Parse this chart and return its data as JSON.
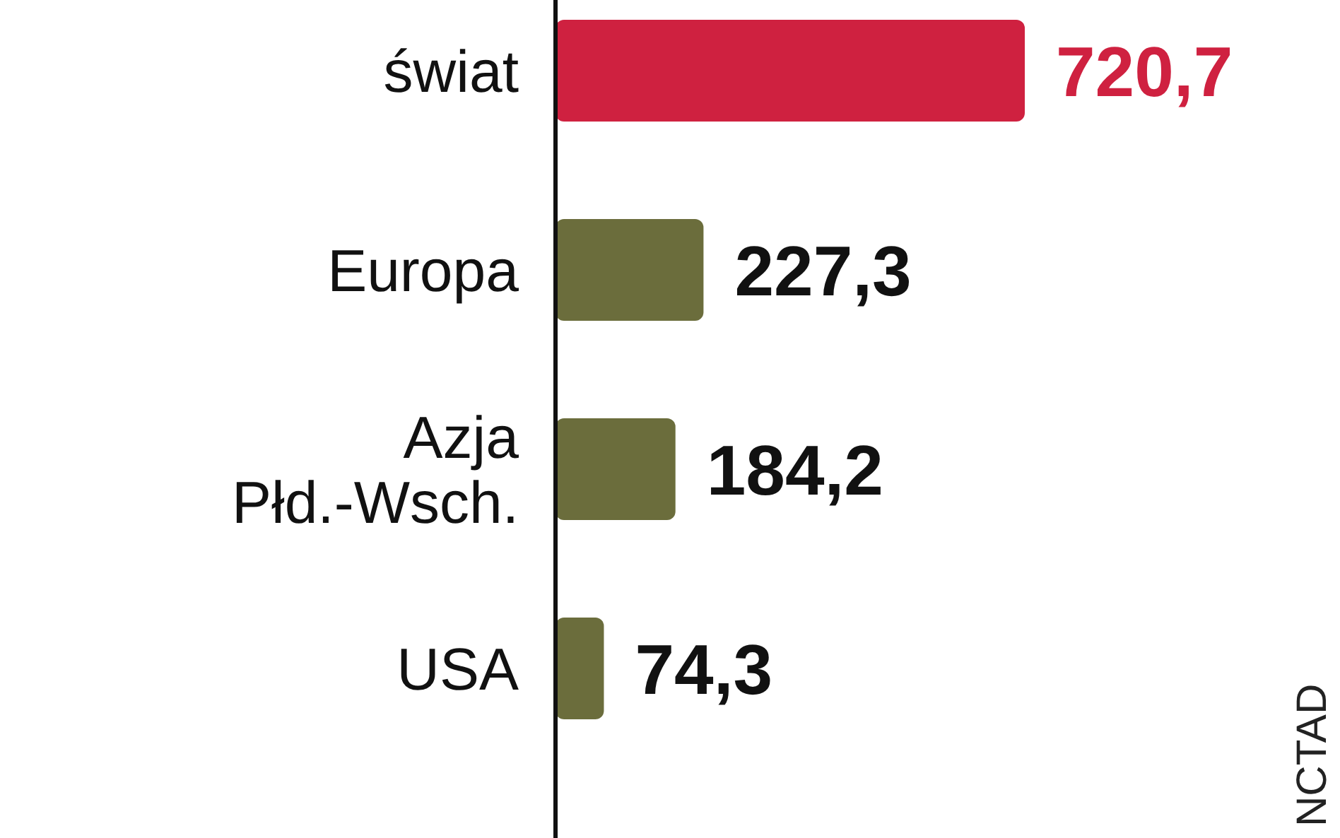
{
  "chart_data": {
    "type": "bar",
    "orientation": "horizontal",
    "categories": [
      "świat",
      "Europa",
      "Azja Płd.-Wsch.",
      "USA"
    ],
    "values": [
      720.7,
      227.3,
      184.2,
      74.3
    ],
    "colors": [
      "#cf2140",
      "#6b6d3c",
      "#6b6d3c",
      "#6b6d3c"
    ],
    "value_labels": [
      "720,7",
      "227,3",
      "184,2",
      "74,3"
    ],
    "xlim": [
      0,
      720.7
    ],
    "annotations": [
      "NCTAD"
    ]
  }
}
